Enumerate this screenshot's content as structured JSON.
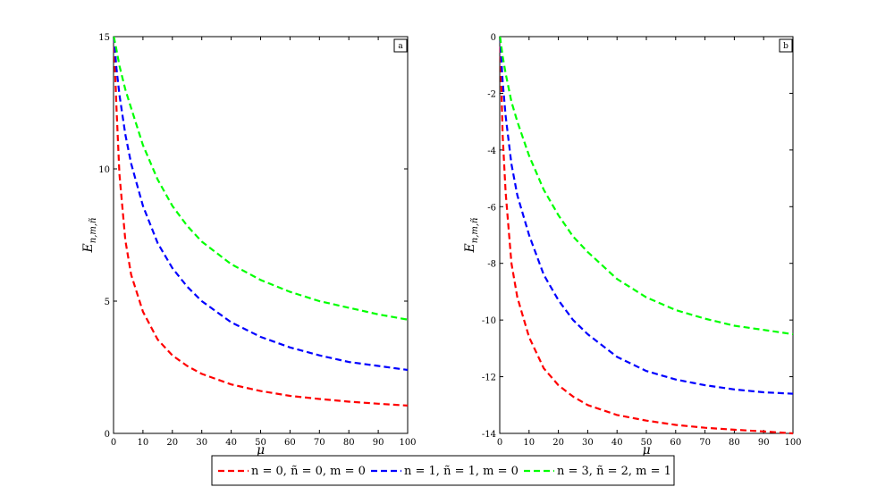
{
  "chart_data": [
    {
      "type": "line",
      "panel_label": "a",
      "xlabel": "μ",
      "ylabel": "E_{n,m,ñ}",
      "xlim": [
        0,
        100
      ],
      "ylim": [
        0,
        15
      ],
      "xticks": [
        0,
        10,
        20,
        30,
        40,
        50,
        60,
        70,
        80,
        90,
        100
      ],
      "yticks": [
        0,
        5,
        10,
        15
      ],
      "grid": false,
      "series": [
        {
          "name": "n = 0, ñ = 0, m = 0",
          "color": "#ff0000",
          "x": [
            0.1,
            1,
            2,
            4,
            6,
            10,
            15,
            20,
            25,
            30,
            40,
            50,
            60,
            70,
            80,
            90,
            100
          ],
          "y": [
            15,
            12.3,
            9.8,
            7.3,
            6.0,
            4.6,
            3.55,
            2.95,
            2.55,
            2.25,
            1.85,
            1.6,
            1.42,
            1.3,
            1.2,
            1.12,
            1.05
          ]
        },
        {
          "name": "n = 1, ñ = 1, m = 0",
          "color": "#0000ff",
          "x": [
            0.1,
            1,
            2,
            4,
            6,
            10,
            15,
            20,
            25,
            30,
            40,
            50,
            60,
            70,
            80,
            90,
            100
          ],
          "y": [
            15,
            13.8,
            12.8,
            11.3,
            10.2,
            8.6,
            7.2,
            6.25,
            5.55,
            5.0,
            4.2,
            3.65,
            3.25,
            2.95,
            2.7,
            2.55,
            2.4
          ]
        },
        {
          "name": "n = 3, ñ = 2, m = 1",
          "color": "#00ff00",
          "x": [
            0.1,
            1,
            2,
            4,
            6,
            10,
            15,
            20,
            25,
            30,
            40,
            50,
            60,
            70,
            80,
            90,
            100
          ],
          "y": [
            15,
            14.5,
            13.9,
            13.0,
            12.3,
            10.9,
            9.6,
            8.6,
            7.85,
            7.25,
            6.4,
            5.8,
            5.35,
            5.0,
            4.75,
            4.5,
            4.3
          ]
        }
      ]
    },
    {
      "type": "line",
      "panel_label": "b",
      "xlabel": "μ",
      "ylabel": "E_{n,m,ñ}",
      "xlim": [
        0,
        100
      ],
      "ylim": [
        -14,
        0
      ],
      "xticks": [
        0,
        10,
        20,
        30,
        40,
        50,
        60,
        70,
        80,
        90,
        100
      ],
      "yticks": [
        0,
        -2,
        -4,
        -6,
        -8,
        -10,
        -12,
        -14
      ],
      "grid": false,
      "series": [
        {
          "name": "n = 0, ñ = 0, m = 0",
          "color": "#ff0000",
          "x": [
            0.1,
            1,
            2,
            4,
            6,
            10,
            15,
            20,
            25,
            30,
            40,
            50,
            60,
            70,
            80,
            90,
            100
          ],
          "y": [
            0,
            -3.5,
            -5.5,
            -8.0,
            -9.2,
            -10.6,
            -11.7,
            -12.3,
            -12.7,
            -13.0,
            -13.35,
            -13.55,
            -13.7,
            -13.8,
            -13.87,
            -13.93,
            -14.0
          ]
        },
        {
          "name": "n = 1, ñ = 1, m = 0",
          "color": "#0000ff",
          "x": [
            0.1,
            1,
            2,
            4,
            6,
            10,
            15,
            20,
            25,
            30,
            40,
            50,
            60,
            70,
            80,
            90,
            100
          ],
          "y": [
            0,
            -1.6,
            -2.8,
            -4.5,
            -5.6,
            -7.0,
            -8.4,
            -9.3,
            -10.0,
            -10.5,
            -11.3,
            -11.8,
            -12.1,
            -12.3,
            -12.45,
            -12.55,
            -12.6
          ]
        },
        {
          "name": "n = 3, ñ = 2, m = 1",
          "color": "#00ff00",
          "x": [
            0.1,
            1,
            2,
            4,
            6,
            10,
            15,
            20,
            25,
            30,
            40,
            50,
            60,
            70,
            80,
            90,
            100
          ],
          "y": [
            0,
            -0.7,
            -1.3,
            -2.3,
            -3.0,
            -4.2,
            -5.4,
            -6.3,
            -7.05,
            -7.6,
            -8.55,
            -9.2,
            -9.65,
            -9.95,
            -10.2,
            -10.35,
            -10.5
          ]
        }
      ]
    }
  ],
  "legend": {
    "placement": "bottom-center",
    "entries": [
      "n = 0, ñ = 0, m = 0",
      "n = 1, ñ = 1, m = 0",
      "n = 3, ñ = 2, m = 1"
    ]
  }
}
